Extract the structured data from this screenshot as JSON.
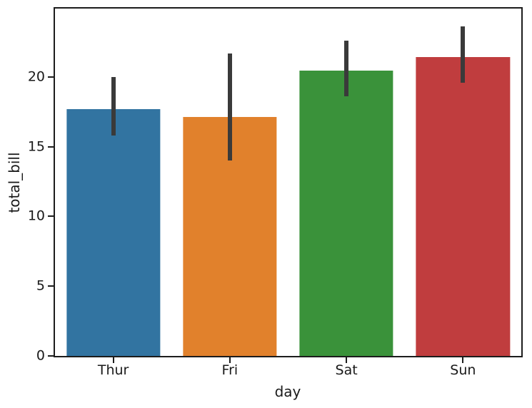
{
  "chart_data": {
    "type": "bar",
    "title": "",
    "xlabel": "day",
    "ylabel": "total_bill",
    "categories": [
      "Thur",
      "Fri",
      "Sat",
      "Sun"
    ],
    "values": [
      17.68,
      17.15,
      20.44,
      21.41
    ],
    "error_bars": {
      "low": [
        15.8,
        14.0,
        18.6,
        19.6
      ],
      "high": [
        20.0,
        21.7,
        22.6,
        23.6
      ]
    },
    "bar_colors": [
      "#3274a1",
      "#e1812c",
      "#3a923a",
      "#c03d3e"
    ],
    "errorbar_color": "#3a3a3a",
    "yticks": [
      0,
      5,
      10,
      15,
      20
    ],
    "ylim": [
      0,
      24.9
    ],
    "grid": false,
    "legend": null,
    "bar_width_fraction": 0.201,
    "spine_color": "#1c1c1c",
    "background_color": "#ffffff"
  }
}
